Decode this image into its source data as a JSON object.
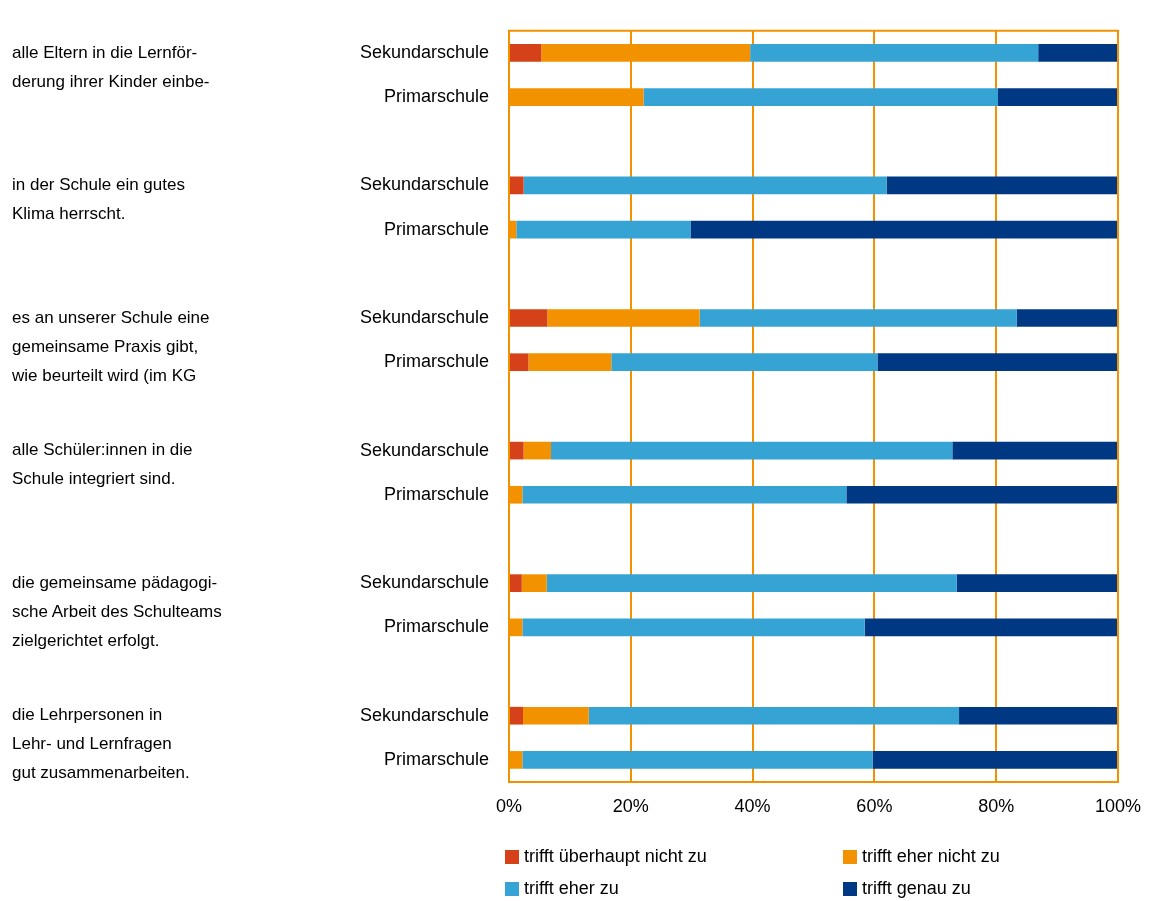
{
  "chart_data": {
    "type": "bar",
    "orientation": "horizontal",
    "stacked": true,
    "categories": [
      "Sekundarschule",
      "Primarschule",
      null,
      "Sekundarschule",
      "Primarschule",
      null,
      "Sekundarschule",
      "Primarschule",
      null,
      "Sekundarschule",
      "Primarschule",
      null,
      "Sekundarschule",
      "Primarschule",
      null,
      "Sekundarschule",
      "Primarschule"
    ],
    "series": [
      {
        "name": "trifft überhaupt nicht zu",
        "color": "#d5421a",
        "values": [
          5.3,
          0,
          null,
          2.4,
          0,
          null,
          6.3,
          3.2,
          null,
          2.4,
          0,
          null,
          2.1,
          0,
          null,
          2.3,
          0
        ]
      },
      {
        "name": "trifft eher nicht zu",
        "color": "#f39200",
        "values": [
          34.3,
          22.1,
          null,
          0,
          1.2,
          null,
          25.0,
          13.6,
          null,
          4.5,
          2.2,
          null,
          4.1,
          2.2,
          null,
          10.8,
          2.2
        ]
      },
      {
        "name": "trifft eher zu",
        "color": "#36a3d5",
        "values": [
          47.3,
          58.2,
          null,
          59.6,
          28.6,
          null,
          52.1,
          43.7,
          null,
          65.9,
          53.2,
          null,
          67.3,
          56.2,
          null,
          60.8,
          57.5
        ]
      },
      {
        "name": "trifft genau zu",
        "color": "#003883",
        "values": [
          13.1,
          19.7,
          null,
          38.0,
          70.2,
          null,
          16.6,
          39.5,
          null,
          27.2,
          44.6,
          null,
          26.5,
          41.6,
          null,
          26.1,
          40.3
        ]
      }
    ],
    "xlim": [
      0,
      100
    ],
    "xticks": [
      {
        "value": 0,
        "label": "0%"
      },
      {
        "value": 20,
        "label": "20%"
      },
      {
        "value": 40,
        "label": "40%"
      },
      {
        "value": 60,
        "label": "60%"
      },
      {
        "value": 80,
        "label": "80%"
      },
      {
        "value": 100,
        "label": "100%"
      }
    ],
    "grid": "x",
    "legend": "bottom",
    "annotations": [
      "alle Eltern in die Lernför-\nderung ihrer Kinder einbe-",
      "in der Schule ein gutes\nKlima herrscht.",
      "es an unserer Schule eine\ngemeinsame Praxis gibt,\nwie beurteilt wird (im KG",
      "alle Schüler:innen in die\nSchule integriert sind.",
      "die gemeinsame pädagogi-\nsche Arbeit des Schulteams\nzielgerichtet erfolgt.",
      "die Lehrpersonen in\nLehr- und Lernfragen\ngut zusammenarbeiten."
    ]
  }
}
